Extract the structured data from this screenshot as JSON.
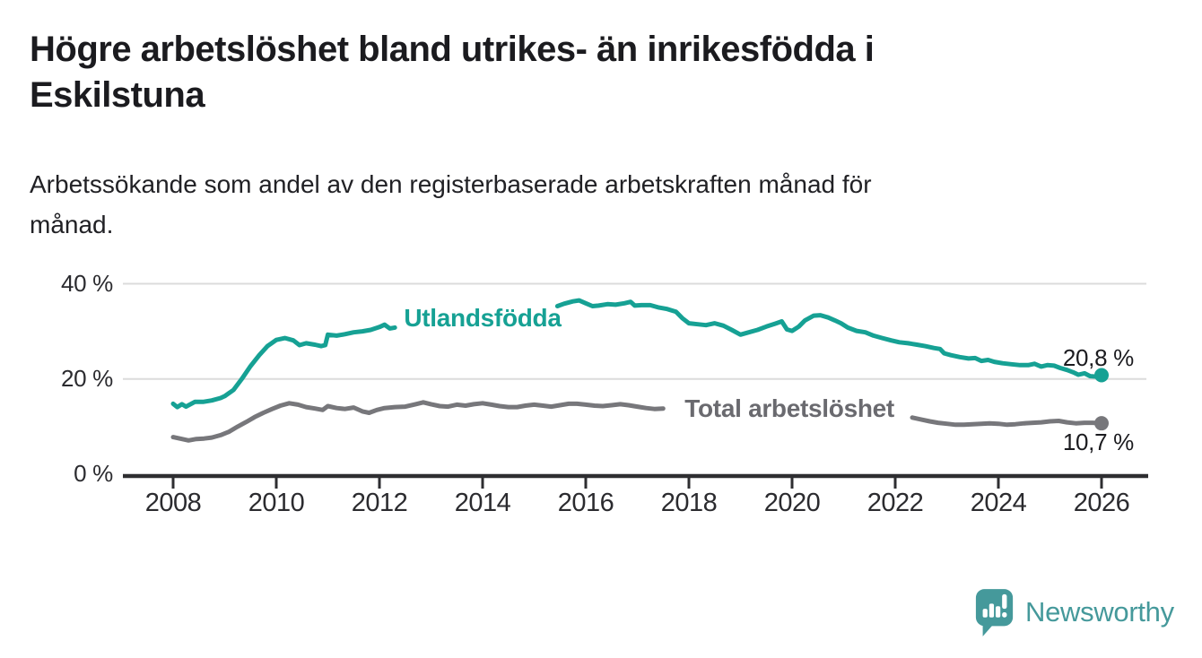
{
  "page": {
    "title_lines": [
      "Högre arbetslöshet bland utrikes- än inrikesfödda i",
      "Eskilstuna"
    ],
    "subtitle_lines": [
      "Arbetssökande som andel av den registerbaserade arbetskraften månad för",
      "månad."
    ],
    "brand": "Newsworthy"
  },
  "colors": {
    "accent_teal": "#16a194",
    "series_gray": "#77777b",
    "gray_label": "#6a6a6f",
    "text_dark": "#1b1b1f",
    "tick_text": "#2b2b2f",
    "grid": "#dbdbdb",
    "axis": "#2e2e31",
    "logo_teal": "#45999b"
  },
  "chart_data": {
    "type": "line",
    "title": "Högre arbetslöshet bland utrikes- än inrikesfödda i Eskilstuna",
    "subtitle": "Arbetssökande som andel av den registerbaserade arbetskraften månad för månad.",
    "unit": "%",
    "xlim": [
      2007.0,
      2026.9
    ],
    "ylim": [
      0,
      42
    ],
    "grid": "horizontal",
    "legend_position": "inline-labels",
    "x_ticks": [
      2008,
      2010,
      2012,
      2014,
      2016,
      2018,
      2020,
      2022,
      2024,
      2026
    ],
    "y_ticks": [
      {
        "value": 0,
        "label": "0 %"
      },
      {
        "value": 20,
        "label": "20 %"
      },
      {
        "value": 40,
        "label": "40 %"
      }
    ],
    "series": [
      {
        "name": "Utlandsfödda",
        "color": "#16a194",
        "label_color": "#16a194",
        "label_pos": {
          "year": 2014.0,
          "pct": 32.8
        },
        "end_value": 20.8,
        "end_label": "20,8 %",
        "end_label_side": "above",
        "segments": [
          [
            [
              2008.0,
              14.8
            ],
            [
              2008.08,
              14.1
            ],
            [
              2008.17,
              14.7
            ],
            [
              2008.25,
              14.2
            ],
            [
              2008.42,
              15.2
            ],
            [
              2008.58,
              15.2
            ],
            [
              2008.75,
              15.5
            ],
            [
              2008.92,
              16.0
            ],
            [
              2009.0,
              16.4
            ],
            [
              2009.17,
              17.7
            ],
            [
              2009.33,
              20.0
            ],
            [
              2009.5,
              22.7
            ],
            [
              2009.67,
              25.0
            ],
            [
              2009.83,
              26.9
            ],
            [
              2010.0,
              28.2
            ],
            [
              2010.17,
              28.6
            ],
            [
              2010.33,
              28.1
            ],
            [
              2010.45,
              27.1
            ],
            [
              2010.58,
              27.5
            ],
            [
              2010.75,
              27.2
            ],
            [
              2010.87,
              26.9
            ],
            [
              2010.95,
              27.1
            ],
            [
              2011.0,
              29.3
            ],
            [
              2011.17,
              29.1
            ],
            [
              2011.33,
              29.4
            ],
            [
              2011.5,
              29.8
            ],
            [
              2011.67,
              30.0
            ],
            [
              2011.83,
              30.3
            ],
            [
              2012.0,
              30.9
            ],
            [
              2012.1,
              31.4
            ],
            [
              2012.2,
              30.6
            ],
            [
              2012.3,
              30.8
            ]
          ],
          [
            [
              2015.45,
              35.3
            ],
            [
              2015.58,
              35.8
            ],
            [
              2015.75,
              36.3
            ],
            [
              2015.87,
              36.5
            ],
            [
              2016.0,
              35.9
            ],
            [
              2016.13,
              35.3
            ],
            [
              2016.25,
              35.4
            ],
            [
              2016.42,
              35.7
            ],
            [
              2016.58,
              35.6
            ],
            [
              2016.75,
              35.9
            ],
            [
              2016.87,
              36.2
            ],
            [
              2016.95,
              35.4
            ],
            [
              2017.08,
              35.5
            ],
            [
              2017.25,
              35.5
            ],
            [
              2017.42,
              35.0
            ],
            [
              2017.58,
              34.7
            ],
            [
              2017.75,
              34.1
            ],
            [
              2017.87,
              32.8
            ],
            [
              2018.0,
              31.7
            ],
            [
              2018.17,
              31.5
            ],
            [
              2018.33,
              31.3
            ],
            [
              2018.5,
              31.7
            ],
            [
              2018.67,
              31.2
            ],
            [
              2018.83,
              30.3
            ],
            [
              2019.0,
              29.3
            ],
            [
              2019.13,
              29.7
            ],
            [
              2019.33,
              30.3
            ],
            [
              2019.5,
              31.0
            ],
            [
              2019.67,
              31.6
            ],
            [
              2019.8,
              32.1
            ],
            [
              2019.9,
              30.4
            ],
            [
              2020.0,
              30.1
            ],
            [
              2020.13,
              31.0
            ],
            [
              2020.25,
              32.3
            ],
            [
              2020.42,
              33.3
            ],
            [
              2020.55,
              33.4
            ],
            [
              2020.7,
              32.9
            ],
            [
              2020.83,
              32.3
            ],
            [
              2020.95,
              31.7
            ],
            [
              2021.08,
              30.8
            ],
            [
              2021.25,
              30.1
            ],
            [
              2021.42,
              29.8
            ],
            [
              2021.58,
              29.1
            ],
            [
              2021.75,
              28.6
            ],
            [
              2021.92,
              28.1
            ],
            [
              2022.08,
              27.7
            ],
            [
              2022.25,
              27.5
            ],
            [
              2022.42,
              27.2
            ],
            [
              2022.58,
              26.9
            ],
            [
              2022.75,
              26.5
            ],
            [
              2022.87,
              26.3
            ],
            [
              2022.95,
              25.4
            ],
            [
              2023.08,
              25.0
            ],
            [
              2023.25,
              24.6
            ],
            [
              2023.42,
              24.3
            ],
            [
              2023.55,
              24.4
            ],
            [
              2023.67,
              23.8
            ],
            [
              2023.8,
              24.0
            ],
            [
              2023.92,
              23.6
            ],
            [
              2024.08,
              23.3
            ],
            [
              2024.25,
              23.1
            ],
            [
              2024.42,
              22.9
            ],
            [
              2024.58,
              22.9
            ],
            [
              2024.7,
              23.2
            ],
            [
              2024.83,
              22.6
            ],
            [
              2024.95,
              22.9
            ],
            [
              2025.08,
              22.8
            ],
            [
              2025.2,
              22.3
            ],
            [
              2025.33,
              21.9
            ],
            [
              2025.45,
              21.4
            ],
            [
              2025.55,
              20.9
            ],
            [
              2025.67,
              21.2
            ],
            [
              2025.78,
              20.6
            ],
            [
              2025.9,
              20.5
            ],
            [
              2026.0,
              20.8
            ]
          ]
        ]
      },
      {
        "name": "Total arbetslöshet",
        "color": "#77777b",
        "label_color": "#6a6a6f",
        "label_pos": {
          "year": 2019.95,
          "pct": 13.75
        },
        "end_value": 10.7,
        "end_label": "10,7 %",
        "end_label_side": "below",
        "segments": [
          [
            [
              2008.0,
              7.8
            ],
            [
              2008.17,
              7.4
            ],
            [
              2008.3,
              7.1
            ],
            [
              2008.45,
              7.4
            ],
            [
              2008.6,
              7.5
            ],
            [
              2008.75,
              7.7
            ],
            [
              2008.92,
              8.2
            ],
            [
              2009.08,
              8.9
            ],
            [
              2009.25,
              10.0
            ],
            [
              2009.42,
              11.0
            ],
            [
              2009.58,
              12.0
            ],
            [
              2009.75,
              12.9
            ],
            [
              2009.92,
              13.7
            ],
            [
              2010.08,
              14.4
            ],
            [
              2010.25,
              14.9
            ],
            [
              2010.42,
              14.6
            ],
            [
              2010.58,
              14.1
            ],
            [
              2010.75,
              13.8
            ],
            [
              2010.9,
              13.5
            ],
            [
              2011.0,
              14.3
            ],
            [
              2011.17,
              13.9
            ],
            [
              2011.33,
              13.7
            ],
            [
              2011.5,
              14.0
            ],
            [
              2011.67,
              13.2
            ],
            [
              2011.8,
              12.9
            ],
            [
              2011.95,
              13.5
            ],
            [
              2012.1,
              13.9
            ],
            [
              2012.3,
              14.1
            ],
            [
              2012.5,
              14.2
            ],
            [
              2012.7,
              14.7
            ],
            [
              2012.85,
              15.1
            ],
            [
              2013.0,
              14.7
            ],
            [
              2013.17,
              14.3
            ],
            [
              2013.33,
              14.2
            ],
            [
              2013.5,
              14.6
            ],
            [
              2013.67,
              14.4
            ],
            [
              2013.83,
              14.7
            ],
            [
              2014.0,
              14.9
            ],
            [
              2014.17,
              14.6
            ],
            [
              2014.33,
              14.3
            ],
            [
              2014.5,
              14.1
            ],
            [
              2014.67,
              14.1
            ],
            [
              2014.83,
              14.4
            ],
            [
              2015.0,
              14.6
            ],
            [
              2015.17,
              14.4
            ],
            [
              2015.33,
              14.2
            ],
            [
              2015.5,
              14.5
            ],
            [
              2015.67,
              14.8
            ],
            [
              2015.83,
              14.8
            ],
            [
              2016.0,
              14.6
            ],
            [
              2016.17,
              14.4
            ],
            [
              2016.33,
              14.3
            ],
            [
              2016.5,
              14.5
            ],
            [
              2016.67,
              14.7
            ],
            [
              2016.83,
              14.5
            ],
            [
              2017.0,
              14.2
            ],
            [
              2017.17,
              13.9
            ],
            [
              2017.33,
              13.7
            ],
            [
              2017.5,
              13.8
            ]
          ],
          [
            [
              2022.33,
              11.9
            ],
            [
              2022.5,
              11.5
            ],
            [
              2022.67,
              11.1
            ],
            [
              2022.83,
              10.8
            ],
            [
              2023.0,
              10.6
            ],
            [
              2023.17,
              10.4
            ],
            [
              2023.33,
              10.4
            ],
            [
              2023.5,
              10.5
            ],
            [
              2023.67,
              10.6
            ],
            [
              2023.83,
              10.7
            ],
            [
              2024.0,
              10.6
            ],
            [
              2024.17,
              10.4
            ],
            [
              2024.33,
              10.5
            ],
            [
              2024.5,
              10.7
            ],
            [
              2024.67,
              10.8
            ],
            [
              2024.83,
              10.9
            ],
            [
              2025.0,
              11.1
            ],
            [
              2025.17,
              11.2
            ],
            [
              2025.33,
              10.9
            ],
            [
              2025.5,
              10.7
            ],
            [
              2025.67,
              10.8
            ],
            [
              2025.83,
              10.8
            ],
            [
              2026.0,
              10.7
            ]
          ]
        ]
      }
    ]
  }
}
